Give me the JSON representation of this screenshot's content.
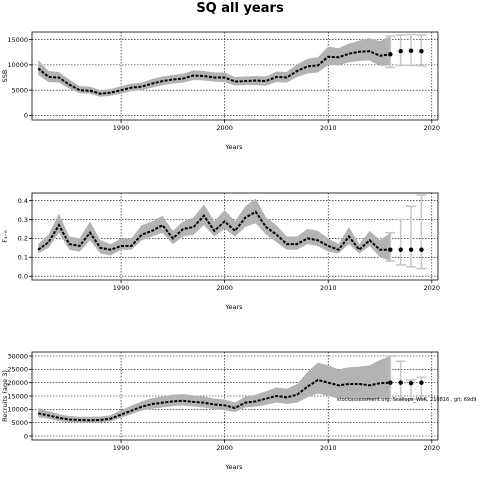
{
  "figure": {
    "title": "SQ all years",
    "watermark": "stockassessment.org, Scallops_WoK, 210816 , git: 69d9"
  },
  "chart_data": [
    {
      "type": "line",
      "ylabel": "SSB",
      "xlabel": "Years",
      "xlim": [
        1981.4,
        2020.6
      ],
      "ylim": [
        -900,
        16500
      ],
      "xticks": [
        1990,
        2000,
        2010,
        2020
      ],
      "yticks": [
        0,
        5000,
        10000,
        15000
      ],
      "ytick_labels": [
        "0",
        "5000",
        "10000",
        "15000"
      ],
      "grid": true,
      "series": [
        {
          "x": [
            1982,
            1983,
            1984,
            1985,
            1986,
            1987,
            1988,
            1989,
            1990,
            1991,
            1992,
            1993,
            1994,
            1995,
            1996,
            1997,
            1998,
            1999,
            2000,
            2001,
            2002,
            2003,
            2004,
            2005,
            2006,
            2007,
            2008,
            2009,
            2010,
            2011,
            2012,
            2013,
            2014,
            2015,
            2016
          ],
          "y": [
            9300,
            7600,
            7500,
            6100,
            5000,
            4900,
            4300,
            4500,
            5000,
            5500,
            5700,
            6300,
            6800,
            7100,
            7300,
            7900,
            7800,
            7500,
            7500,
            6700,
            6800,
            6900,
            6800,
            7600,
            7500,
            8800,
            9700,
            9900,
            11600,
            11500,
            12200,
            12600,
            12700,
            11800,
            12100
          ],
          "lower": [
            8000,
            6600,
            6500,
            5300,
            4400,
            4300,
            3700,
            3900,
            4300,
            4800,
            5000,
            5500,
            6000,
            6300,
            6500,
            7000,
            6900,
            6700,
            6600,
            5900,
            6000,
            6000,
            5900,
            6600,
            6500,
            7600,
            8300,
            8500,
            10000,
            9900,
            10500,
            10800,
            10900,
            9800,
            9900
          ],
          "upper": [
            11000,
            8800,
            8600,
            7100,
            5800,
            5700,
            5000,
            5200,
            5800,
            6300,
            6500,
            7200,
            7700,
            8000,
            8300,
            8900,
            8800,
            8500,
            8500,
            7600,
            7700,
            7800,
            7700,
            8700,
            8600,
            10100,
            11200,
            11500,
            13600,
            13300,
            14200,
            14800,
            15300,
            14700,
            15700
          ]
        }
      ],
      "forecast": {
        "x": [
          2016,
          2017,
          2018,
          2019
        ],
        "y": [
          12100,
          12700,
          12800,
          12700
        ],
        "lower": [
          9500,
          9900,
          9900,
          9800
        ],
        "upper": [
          15700,
          15900,
          16000,
          15900
        ]
      }
    },
    {
      "type": "line",
      "ylabel": "F₄₋₆",
      "xlabel": "Years",
      "xlim": [
        1981.4,
        2020.6
      ],
      "ylim": [
        -0.02,
        0.44
      ],
      "xticks": [
        1990,
        2000,
        2010,
        2020
      ],
      "yticks": [
        0,
        0.1,
        0.2,
        0.3,
        0.4
      ],
      "ytick_labels": [
        "0.0",
        "0.1",
        "0.2",
        "0.3",
        "0.4"
      ],
      "grid": true,
      "series": [
        {
          "x": [
            1982,
            1983,
            1984,
            1985,
            1986,
            1987,
            1988,
            1989,
            1990,
            1991,
            1992,
            1993,
            1994,
            1995,
            1996,
            1997,
            1998,
            1999,
            2000,
            2001,
            2002,
            2003,
            2004,
            2005,
            2006,
            2007,
            2008,
            2009,
            2010,
            2011,
            2012,
            2013,
            2014,
            2015,
            2016
          ],
          "y": [
            0.14,
            0.18,
            0.27,
            0.17,
            0.16,
            0.23,
            0.15,
            0.14,
            0.16,
            0.16,
            0.22,
            0.24,
            0.27,
            0.2,
            0.25,
            0.26,
            0.32,
            0.24,
            0.29,
            0.24,
            0.31,
            0.34,
            0.26,
            0.22,
            0.17,
            0.17,
            0.2,
            0.19,
            0.16,
            0.14,
            0.21,
            0.14,
            0.19,
            0.14,
            0.14
          ],
          "lower": [
            0.12,
            0.15,
            0.23,
            0.14,
            0.13,
            0.19,
            0.12,
            0.11,
            0.14,
            0.14,
            0.19,
            0.21,
            0.23,
            0.17,
            0.21,
            0.22,
            0.27,
            0.21,
            0.25,
            0.21,
            0.26,
            0.28,
            0.22,
            0.18,
            0.14,
            0.14,
            0.17,
            0.16,
            0.13,
            0.12,
            0.17,
            0.12,
            0.16,
            0.1,
            0.08
          ],
          "upper": [
            0.17,
            0.22,
            0.33,
            0.21,
            0.2,
            0.29,
            0.19,
            0.17,
            0.2,
            0.2,
            0.27,
            0.29,
            0.32,
            0.24,
            0.29,
            0.31,
            0.38,
            0.29,
            0.35,
            0.29,
            0.37,
            0.41,
            0.31,
            0.27,
            0.21,
            0.21,
            0.25,
            0.24,
            0.2,
            0.17,
            0.26,
            0.17,
            0.24,
            0.19,
            0.23
          ]
        }
      ],
      "forecast": {
        "x": [
          2016,
          2017,
          2018,
          2019
        ],
        "y": [
          0.14,
          0.14,
          0.14,
          0.14
        ],
        "lower": [
          0.08,
          0.06,
          0.05,
          0.04
        ],
        "upper": [
          0.23,
          0.3,
          0.37,
          0.43
        ]
      }
    },
    {
      "type": "line",
      "ylabel": "Recruits (age 3)",
      "xlabel": "Years",
      "xlim": [
        1981.4,
        2020.6
      ],
      "ylim": [
        -1500,
        31500
      ],
      "xticks": [
        1990,
        2000,
        2010,
        2020
      ],
      "yticks": [
        0,
        5000,
        10000,
        15000,
        20000,
        25000,
        30000
      ],
      "ytick_labels": [
        "0",
        "5000",
        "10000",
        "15000",
        "20000",
        "25000",
        "30000"
      ],
      "grid": true,
      "series": [
        {
          "x": [
            1982,
            1983,
            1984,
            1985,
            1986,
            1987,
            1988,
            1989,
            1990,
            1991,
            1992,
            1993,
            1994,
            1995,
            1996,
            1997,
            1998,
            1999,
            2000,
            2001,
            2002,
            2003,
            2004,
            2005,
            2006,
            2007,
            2008,
            2009,
            2010,
            2011,
            2012,
            2013,
            2014,
            2015,
            2016
          ],
          "y": [
            8500,
            7700,
            6800,
            6200,
            6000,
            5900,
            6000,
            6500,
            8000,
            9500,
            11000,
            12000,
            12500,
            13000,
            13200,
            12800,
            12500,
            11800,
            11500,
            10500,
            12500,
            13000,
            14000,
            15000,
            14500,
            15500,
            18500,
            21000,
            20000,
            19000,
            19500,
            19500,
            19000,
            19800,
            20000
          ],
          "lower": [
            7000,
            6500,
            5600,
            5200,
            5000,
            5000,
            5000,
            5500,
            6800,
            8200,
            9500,
            10200,
            10700,
            11200,
            11500,
            11000,
            10700,
            10000,
            9700,
            9000,
            10700,
            11000,
            11700,
            12500,
            12000,
            12500,
            14500,
            16000,
            15000,
            14000,
            14000,
            14000,
            13500,
            14000,
            14000
          ],
          "upper": [
            10500,
            9300,
            8200,
            7500,
            7200,
            7200,
            7300,
            7800,
            9700,
            11400,
            13000,
            14200,
            14800,
            15500,
            15700,
            15200,
            14800,
            14000,
            13700,
            12500,
            14800,
            15500,
            16800,
            18200,
            17700,
            19500,
            24000,
            27500,
            26500,
            25000,
            25800,
            26000,
            26500,
            28500,
            30000
          ]
        }
      ],
      "forecast": {
        "x": [
          2016,
          2017,
          2018,
          2019
        ],
        "y": [
          20000,
          20000,
          19800,
          20000
        ],
        "lower": [
          14000,
          13800,
          13800,
          13800
        ],
        "upper": [
          30000,
          28000,
          21000,
          22000
        ]
      }
    }
  ]
}
